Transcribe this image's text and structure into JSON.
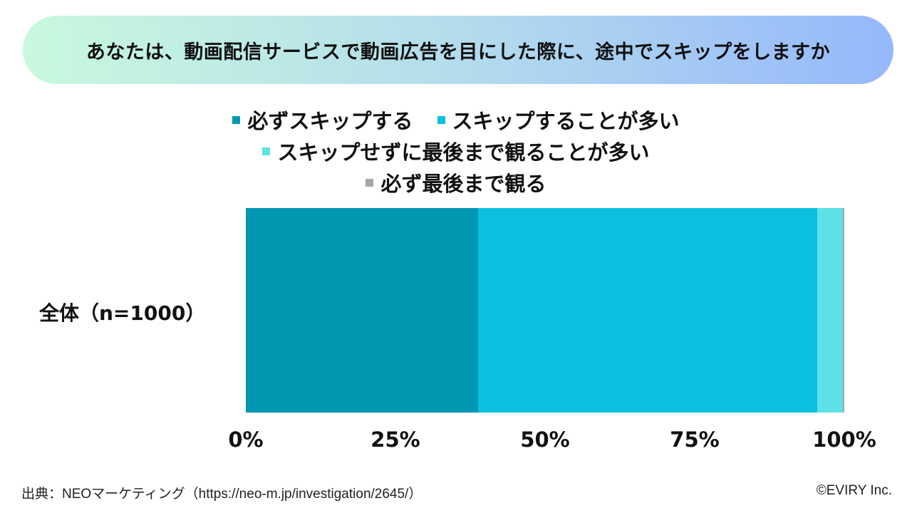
{
  "title": "あなたは、動画配信サービスで動画広告を目にした際に、途中でスキップをしますか",
  "legend": {
    "rows": [
      [
        {
          "label": "必ずスキップする",
          "color": "#0097b2"
        },
        {
          "label": "スキップすることが多い",
          "color": "#0cc0df"
        }
      ],
      [
        {
          "label": "スキップせずに最後まで観ることが多い",
          "color": "#5ce1e6"
        }
      ],
      [
        {
          "label": "必ず最後まで観る",
          "color": "#a6a6a6"
        }
      ]
    ]
  },
  "row_label": "全体（n=1000）",
  "axis": {
    "ticks": [
      "0%",
      "25%",
      "50%",
      "75%",
      "100%"
    ]
  },
  "footer": {
    "source": "出典：NEOマーケティング（https://neo-m.jp/investigation/2645/）",
    "copyright": "©EVIRY Inc."
  },
  "chart_data": {
    "type": "bar",
    "orientation": "horizontal",
    "stacked": true,
    "normalized": true,
    "title": "あなたは、動画配信サービスで動画広告を目にした際に、途中でスキップをしますか",
    "categories": [
      "全体（n=1000）"
    ],
    "series": [
      {
        "name": "必ずスキップする",
        "color": "#0097b2",
        "values": [
          38.8
        ]
      },
      {
        "name": "スキップすることが多い",
        "color": "#0cc0df",
        "values": [
          56.7
        ]
      },
      {
        "name": "スキップせずに最後まで観ることが多い",
        "color": "#5ce1e6",
        "values": [
          4.3
        ]
      },
      {
        "name": "必ず最後まで観る",
        "color": "#a6a6a6",
        "values": [
          0.2
        ]
      }
    ],
    "xlabel": "",
    "ylabel": "",
    "xlim": [
      0,
      100
    ],
    "xticks": [
      "0%",
      "25%",
      "50%",
      "75%",
      "100%"
    ],
    "grid": false,
    "legend_position": "top"
  }
}
